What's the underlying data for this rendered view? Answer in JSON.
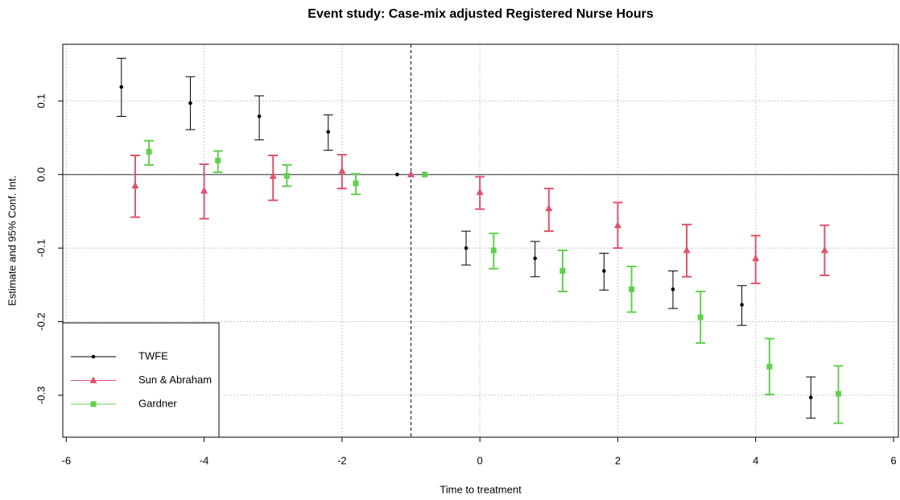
{
  "chart_data": {
    "type": "errorbar",
    "title": "Event study: Case-mix adjusted Registered Nurse Hours",
    "xlabel": "Time to treatment",
    "ylabel": "Estimate and 95% Conf. Int.",
    "xlim": [
      -6.05,
      6.07
    ],
    "ylim": [
      -0.357,
      0.177
    ],
    "xticks": [
      -6,
      -4,
      -2,
      0,
      2,
      4,
      6
    ],
    "yticks": [
      -0.3,
      -0.2,
      -0.1,
      {
        "value": 0,
        "label": "0.0"
      },
      0.1
    ],
    "grid": true,
    "hline": 0,
    "vline": -1,
    "legend": "bottom-left",
    "series": [
      {
        "name": "TWFE",
        "color": "#000000",
        "marker": "circle",
        "x": [
          -5.2,
          -4.2,
          -3.2,
          -2.2,
          -1.2,
          -0.2,
          0.8,
          1.8,
          2.8,
          3.8,
          4.8
        ],
        "values": [
          0.119,
          0.097,
          0.079,
          0.058,
          0,
          -0.1,
          -0.114,
          -0.131,
          -0.156,
          -0.177,
          -0.303
        ],
        "lower": [
          0.079,
          0.061,
          0.047,
          0.033,
          0,
          -0.123,
          -0.139,
          -0.157,
          -0.182,
          -0.205,
          -0.331
        ],
        "upper": [
          0.158,
          0.133,
          0.107,
          0.081,
          0,
          -0.077,
          -0.091,
          -0.107,
          -0.131,
          -0.151,
          -0.275
        ]
      },
      {
        "name": "Sun & Abraham",
        "color": "#DF536B",
        "marker": "triangle",
        "x": [
          -5,
          -4,
          -3,
          -2,
          -1,
          0,
          1,
          2,
          3,
          4,
          5
        ],
        "values": [
          -0.015,
          -0.022,
          -0.002,
          0.005,
          0,
          -0.024,
          -0.046,
          -0.069,
          -0.103,
          -0.114,
          -0.103
        ],
        "lower": [
          -0.058,
          -0.06,
          -0.035,
          -0.019,
          0,
          -0.047,
          -0.077,
          -0.1,
          -0.139,
          -0.148,
          -0.137
        ],
        "upper": [
          0.026,
          0.014,
          0.026,
          0.027,
          0,
          -0.003,
          -0.019,
          -0.038,
          -0.068,
          -0.083,
          -0.069
        ]
      },
      {
        "name": "Gardner",
        "color": "#61D04F",
        "marker": "square",
        "x": [
          -4.8,
          -3.8,
          -2.8,
          -1.8,
          -0.8,
          0.2,
          1.2,
          2.2,
          3.2,
          4.2,
          5.2
        ],
        "values": [
          0.031,
          0.019,
          -0.002,
          -0.012,
          0,
          -0.103,
          -0.131,
          -0.156,
          -0.194,
          -0.261,
          -0.298
        ],
        "lower": [
          0.013,
          0.003,
          -0.016,
          -0.027,
          0,
          -0.128,
          -0.159,
          -0.187,
          -0.229,
          -0.299,
          -0.338
        ],
        "upper": [
          0.046,
          0.032,
          0.013,
          0.001,
          0,
          -0.08,
          -0.103,
          -0.125,
          -0.159,
          -0.223,
          -0.26
        ]
      }
    ]
  }
}
